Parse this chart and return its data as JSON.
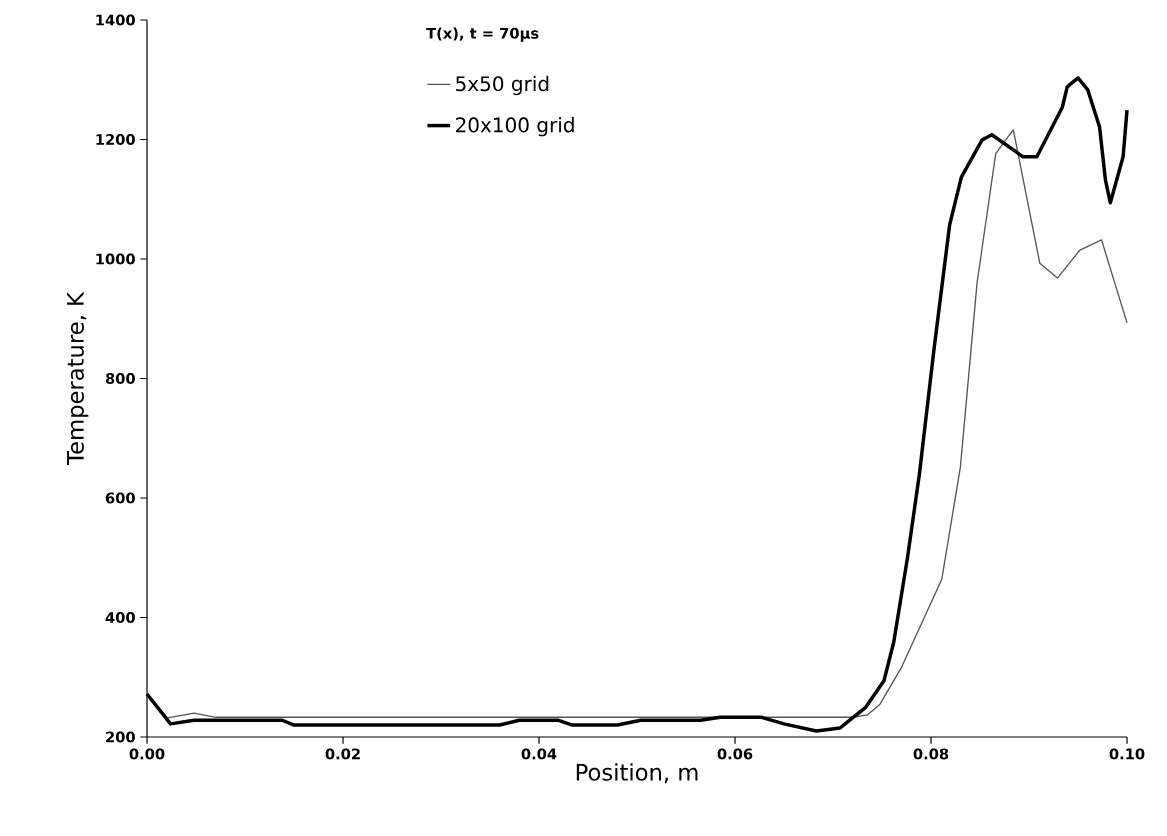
{
  "chart_data": {
    "type": "line",
    "title": "T(x), t = 70μs",
    "xlabel": "Position, m",
    "ylabel": "Temperature, K",
    "xlim": [
      0,
      0.1
    ],
    "ylim": [
      200,
      1400
    ],
    "xticks": [
      {
        "value": 0,
        "label": "0.00"
      },
      {
        "value": 0.02,
        "label": "0.02"
      },
      {
        "value": 0.04,
        "label": "0.04"
      },
      {
        "value": 0.06,
        "label": "0.06"
      },
      {
        "value": 0.08,
        "label": "0.08"
      },
      {
        "value": 0.1,
        "label": "0.10"
      }
    ],
    "yticks": [
      200,
      400,
      600,
      800,
      1000,
      1200,
      1400
    ],
    "grid": false,
    "legend": "top left",
    "marker": "none",
    "line_style": "solid",
    "series": [
      {
        "name": "5x50 grid",
        "color": "#555555",
        "x": [
          0,
          0.0021,
          0.0048,
          0.007,
          0.02,
          0.04,
          0.06,
          0.072,
          0.0735,
          0.0748,
          0.077,
          0.0811,
          0.083,
          0.0847,
          0.0866,
          0.0876,
          0.0884,
          0.0911,
          0.0929,
          0.0952,
          0.0974,
          0.1
        ],
        "values": [
          270,
          232,
          240,
          233,
          233,
          233,
          233,
          233,
          237,
          255,
          317,
          464,
          652,
          960,
          1176,
          1199,
          1216,
          993,
          968,
          1015,
          1032,
          893
        ]
      },
      {
        "name": "20x100 grid",
        "color": "#000000",
        "x": [
          0,
          0.0024,
          0.0048,
          0.0138,
          0.015,
          0.036,
          0.038,
          0.042,
          0.0434,
          0.048,
          0.0504,
          0.0565,
          0.0585,
          0.0627,
          0.065,
          0.0683,
          0.0707,
          0.0733,
          0.0752,
          0.0762,
          0.0776,
          0.0788,
          0.0803,
          0.0819,
          0.0831,
          0.0852,
          0.0862,
          0.0894,
          0.0908,
          0.0934,
          0.0939,
          0.095,
          0.096,
          0.0972,
          0.0978,
          0.0983,
          0.0996,
          0.1
        ],
        "values": [
          272,
          222,
          228,
          228,
          220,
          220,
          228,
          228,
          220,
          220,
          228,
          228,
          233,
          233,
          222,
          210,
          215,
          249,
          294,
          359,
          500,
          638,
          848,
          1057,
          1137,
          1199,
          1208,
          1171,
          1171,
          1254,
          1288,
          1303,
          1283,
          1221,
          1132,
          1094,
          1171,
          1249
        ]
      }
    ]
  }
}
